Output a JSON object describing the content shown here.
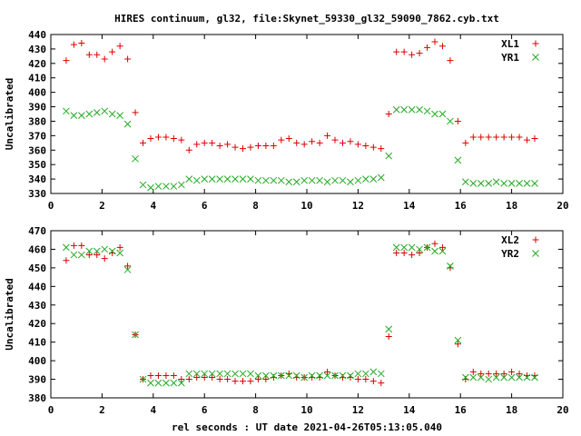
{
  "page": {
    "title": "HIRES continuum, gl32, file:Skynet_59330_gl32_59090_7862.cyb.txt"
  },
  "colors": {
    "xl": "#dd0000",
    "yr": "#22aa22",
    "axis": "#000000"
  },
  "chart_data": [
    {
      "type": "scatter",
      "ylabel": "Uncalibrated",
      "xlabel": "",
      "xlim": [
        0,
        20
      ],
      "ylim": [
        330,
        440
      ],
      "xticks": [
        0,
        2,
        4,
        6,
        8,
        10,
        12,
        14,
        16,
        18,
        20
      ],
      "yticks": [
        330,
        340,
        350,
        360,
        370,
        380,
        390,
        400,
        410,
        420,
        430,
        440
      ],
      "legend_position": "top-right",
      "series": [
        {
          "name": "XL1",
          "marker": "plus",
          "color": "#dd0000",
          "x": [
            0.6,
            0.9,
            1.2,
            1.5,
            1.8,
            2.1,
            2.4,
            2.7,
            3.0,
            3.3,
            3.6,
            3.9,
            4.2,
            4.5,
            4.8,
            5.1,
            5.4,
            5.7,
            6.0,
            6.3,
            6.6,
            6.9,
            7.2,
            7.5,
            7.8,
            8.1,
            8.4,
            8.7,
            9.0,
            9.3,
            9.6,
            9.9,
            10.2,
            10.5,
            10.8,
            11.1,
            11.4,
            11.7,
            12.0,
            12.3,
            12.6,
            12.9,
            13.2,
            13.5,
            13.8,
            14.1,
            14.4,
            14.7,
            15.0,
            15.3,
            15.6,
            15.9,
            16.2,
            16.5,
            16.8,
            17.1,
            17.4,
            17.7,
            18.0,
            18.3,
            18.6,
            18.9
          ],
          "y": [
            422,
            433,
            434,
            426,
            426,
            423,
            428,
            432,
            423,
            386,
            365,
            368,
            369,
            369,
            368,
            367,
            360,
            364,
            365,
            365,
            363,
            364,
            362,
            361,
            362,
            363,
            363,
            363,
            367,
            368,
            365,
            364,
            366,
            365,
            370,
            367,
            365,
            366,
            364,
            363,
            362,
            361,
            385,
            428,
            428,
            426,
            427,
            431,
            435,
            432,
            422,
            380,
            365,
            369,
            369,
            369,
            369,
            369,
            369,
            369,
            367,
            368
          ]
        },
        {
          "name": "YR1",
          "marker": "x",
          "color": "#22aa22",
          "x": [
            0.6,
            0.9,
            1.2,
            1.5,
            1.8,
            2.1,
            2.4,
            2.7,
            3.0,
            3.3,
            3.6,
            3.9,
            4.2,
            4.5,
            4.8,
            5.1,
            5.4,
            5.7,
            6.0,
            6.3,
            6.6,
            6.9,
            7.2,
            7.5,
            7.8,
            8.1,
            8.4,
            8.7,
            9.0,
            9.3,
            9.6,
            9.9,
            10.2,
            10.5,
            10.8,
            11.1,
            11.4,
            11.7,
            12.0,
            12.3,
            12.6,
            12.9,
            13.2,
            13.5,
            13.8,
            14.1,
            14.4,
            14.7,
            15.0,
            15.3,
            15.6,
            15.9,
            16.2,
            16.5,
            16.8,
            17.1,
            17.4,
            17.7,
            18.0,
            18.3,
            18.6,
            18.9
          ],
          "y": [
            387,
            384,
            384,
            385,
            386,
            387,
            385,
            384,
            378,
            354,
            336,
            334,
            335,
            335,
            335,
            336,
            340,
            339,
            340,
            340,
            340,
            340,
            340,
            340,
            340,
            339,
            339,
            339,
            339,
            338,
            338,
            339,
            339,
            339,
            338,
            339,
            339,
            338,
            339,
            340,
            340,
            341,
            356,
            388,
            388,
            388,
            388,
            387,
            385,
            385,
            380,
            353,
            338,
            337,
            337,
            337,
            338,
            337,
            337,
            337,
            337,
            337
          ]
        }
      ]
    },
    {
      "type": "scatter",
      "ylabel": "Uncalibrated",
      "xlabel": "rel seconds : UT date 2021-04-26T05:13:05.040",
      "xlim": [
        0,
        20
      ],
      "ylim": [
        380,
        470
      ],
      "xticks": [
        0,
        2,
        4,
        6,
        8,
        10,
        12,
        14,
        16,
        18,
        20
      ],
      "yticks": [
        380,
        390,
        400,
        410,
        420,
        430,
        440,
        450,
        460,
        470
      ],
      "legend_position": "top-right",
      "series": [
        {
          "name": "XL2",
          "marker": "plus",
          "color": "#dd0000",
          "x": [
            0.6,
            0.9,
            1.2,
            1.5,
            1.8,
            2.1,
            2.4,
            2.7,
            3.0,
            3.3,
            3.6,
            3.9,
            4.2,
            4.5,
            4.8,
            5.1,
            5.4,
            5.7,
            6.0,
            6.3,
            6.6,
            6.9,
            7.2,
            7.5,
            7.8,
            8.1,
            8.4,
            8.7,
            9.0,
            9.3,
            9.6,
            9.9,
            10.2,
            10.5,
            10.8,
            11.1,
            11.4,
            11.7,
            12.0,
            12.3,
            12.6,
            12.9,
            13.2,
            13.5,
            13.8,
            14.1,
            14.4,
            14.7,
            15.0,
            15.3,
            15.6,
            15.9,
            16.2,
            16.5,
            16.8,
            17.1,
            17.4,
            17.7,
            18.0,
            18.3,
            18.6,
            18.9
          ],
          "y": [
            454,
            462,
            462,
            457,
            457,
            455,
            458,
            461,
            451,
            414,
            390,
            392,
            392,
            392,
            392,
            390,
            390,
            391,
            391,
            391,
            390,
            390,
            389,
            389,
            389,
            390,
            390,
            391,
            392,
            393,
            391,
            391,
            391,
            391,
            394,
            392,
            391,
            391,
            390,
            390,
            389,
            388,
            413,
            458,
            458,
            457,
            458,
            461,
            463,
            461,
            450,
            409,
            390,
            394,
            393,
            393,
            393,
            393,
            394,
            393,
            392,
            392
          ]
        },
        {
          "name": "YR2",
          "marker": "x",
          "color": "#22aa22",
          "x": [
            0.6,
            0.9,
            1.2,
            1.5,
            1.8,
            2.1,
            2.4,
            2.7,
            3.0,
            3.3,
            3.6,
            3.9,
            4.2,
            4.5,
            4.8,
            5.1,
            5.4,
            5.7,
            6.0,
            6.3,
            6.6,
            6.9,
            7.2,
            7.5,
            7.8,
            8.1,
            8.4,
            8.7,
            9.0,
            9.3,
            9.6,
            9.9,
            10.2,
            10.5,
            10.8,
            11.1,
            11.4,
            11.7,
            12.0,
            12.3,
            12.6,
            12.9,
            13.2,
            13.5,
            13.8,
            14.1,
            14.4,
            14.7,
            15.0,
            15.3,
            15.6,
            15.9,
            16.2,
            16.5,
            16.8,
            17.1,
            17.4,
            17.7,
            18.0,
            18.3,
            18.6,
            18.9
          ],
          "y": [
            461,
            457,
            457,
            459,
            459,
            460,
            459,
            458,
            449,
            414,
            390,
            388,
            388,
            388,
            388,
            388,
            393,
            393,
            393,
            393,
            393,
            393,
            393,
            393,
            393,
            392,
            392,
            392,
            392,
            392,
            392,
            391,
            392,
            392,
            392,
            392,
            392,
            392,
            393,
            393,
            394,
            393,
            417,
            461,
            461,
            461,
            460,
            461,
            459,
            459,
            451,
            411,
            391,
            391,
            391,
            390,
            391,
            391,
            391,
            391,
            391,
            391
          ]
        }
      ]
    }
  ]
}
